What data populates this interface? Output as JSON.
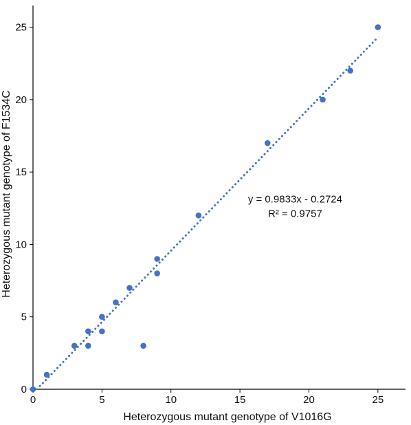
{
  "chart_data": {
    "type": "scatter",
    "title": "",
    "xlabel": "Heterozygous mutant genotype of V1016G",
    "ylabel": "Heterozygous mutant genotype of F1534C",
    "xlim": [
      0,
      27
    ],
    "ylim": [
      0,
      26.5
    ],
    "xticks": [
      0,
      5,
      10,
      15,
      20,
      25
    ],
    "yticks": [
      0,
      5,
      10,
      15,
      20,
      25
    ],
    "grid": false,
    "legend": "none",
    "point_color": "#4472C4",
    "trendline_color": "#4472C4",
    "points": [
      {
        "x": 0,
        "y": 0
      },
      {
        "x": 1,
        "y": 1
      },
      {
        "x": 3,
        "y": 3
      },
      {
        "x": 4,
        "y": 3
      },
      {
        "x": 4,
        "y": 4
      },
      {
        "x": 5,
        "y": 4
      },
      {
        "x": 5,
        "y": 5
      },
      {
        "x": 6,
        "y": 6
      },
      {
        "x": 7,
        "y": 7
      },
      {
        "x": 8,
        "y": 3
      },
      {
        "x": 9,
        "y": 8
      },
      {
        "x": 9,
        "y": 9
      },
      {
        "x": 12,
        "y": 12
      },
      {
        "x": 17,
        "y": 17
      },
      {
        "x": 21,
        "y": 20
      },
      {
        "x": 23,
        "y": 22
      },
      {
        "x": 25,
        "y": 25
      }
    ],
    "trendline": {
      "slope": 0.9833,
      "intercept": -0.2724,
      "x_range": [
        0.5,
        25
      ]
    },
    "annotations": {
      "equation": "y = 0.9833x - 0.2724",
      "r_squared": "R² = 0.9757"
    }
  }
}
